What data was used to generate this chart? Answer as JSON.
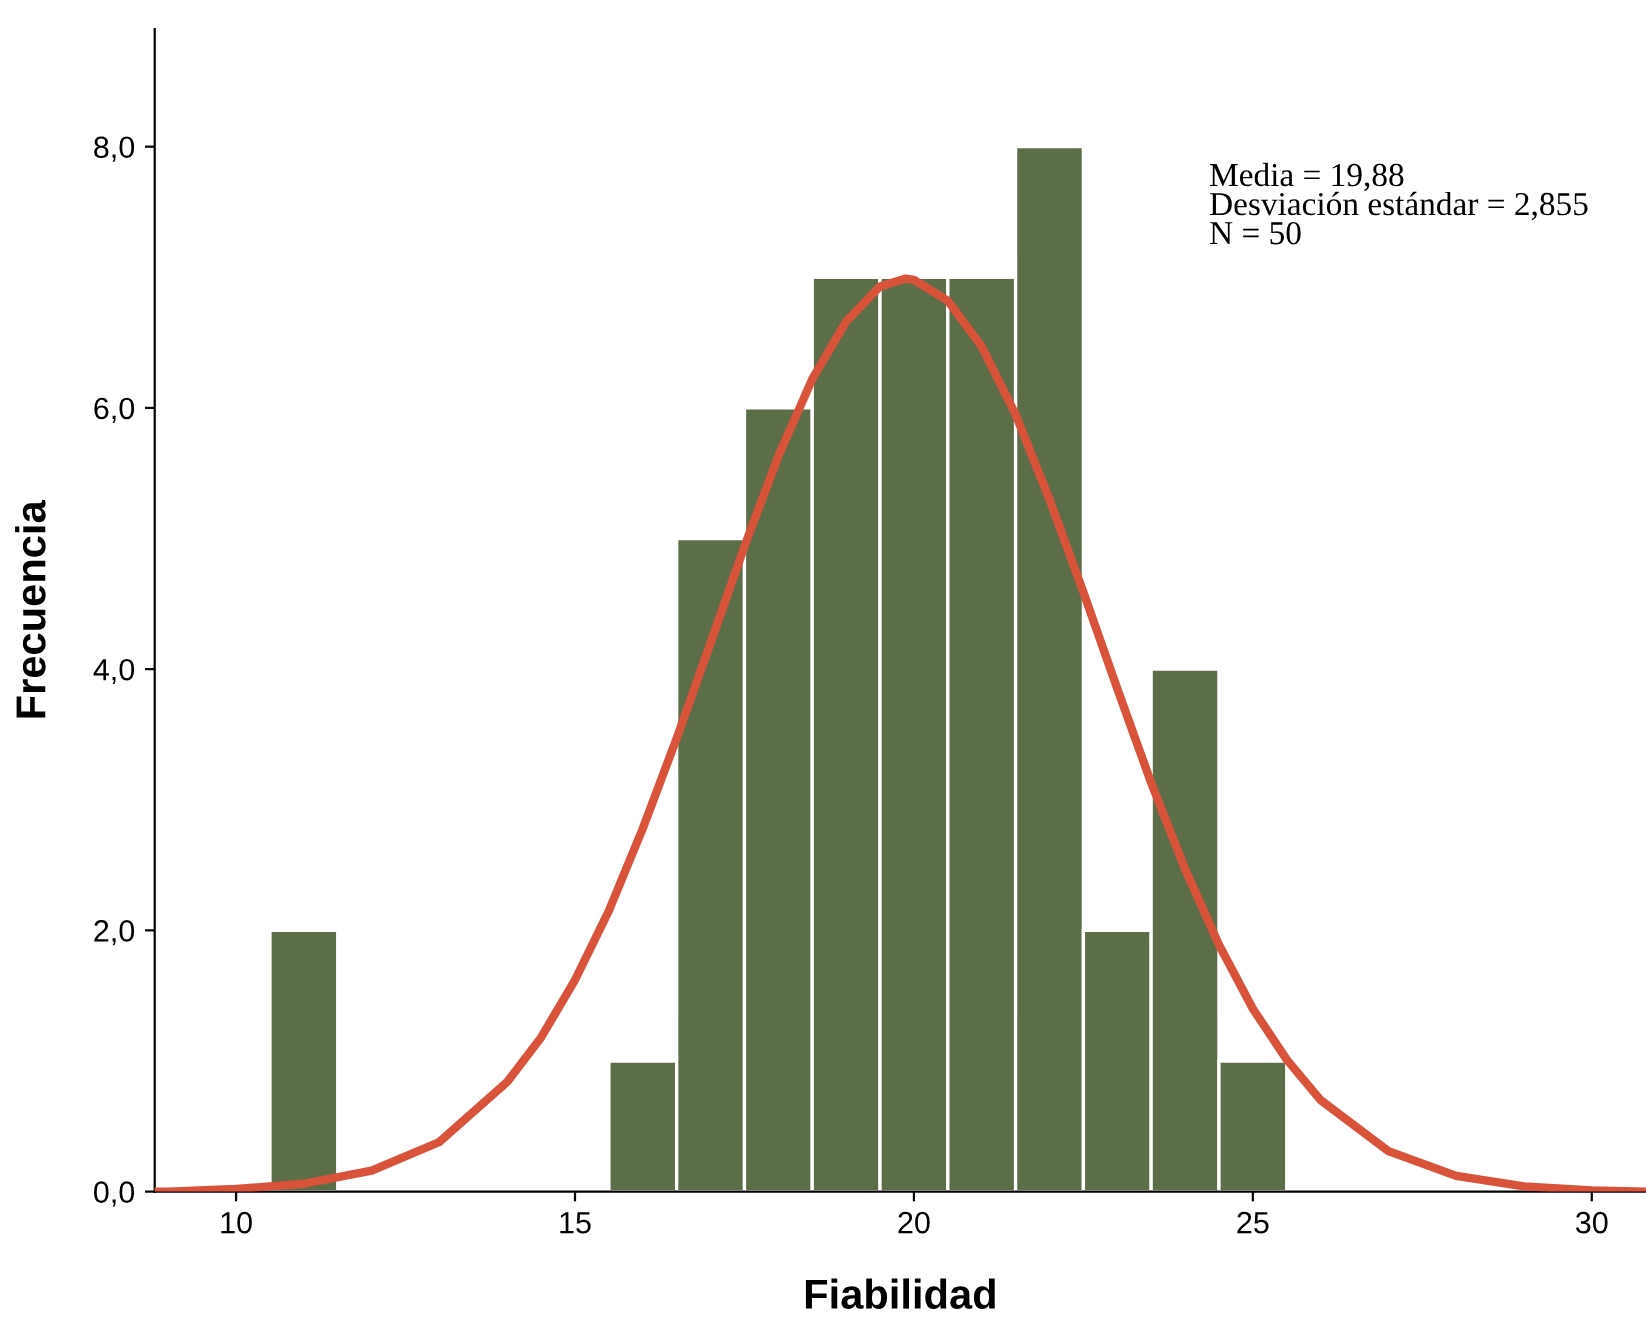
{
  "chart_data": {
    "type": "histogram",
    "xlabel": "Fiabilidad",
    "ylabel": "Frecuencia",
    "bins": [
      10.5,
      11.5,
      12.5,
      13.5,
      14.5,
      15.5,
      16.5,
      17.5,
      18.5,
      19.5,
      20.5,
      21.5,
      22.5,
      23.5,
      24.5,
      25.5
    ],
    "values": [
      2,
      0,
      0,
      0,
      0,
      1,
      5,
      6,
      7,
      7,
      7,
      8,
      2,
      4,
      1
    ],
    "color": "#5b6e48",
    "series": [
      {
        "type": "line",
        "color": "#d9533a",
        "x": [
          8.8,
          9,
          10,
          11,
          12,
          13,
          14,
          14.5,
          15,
          15.5,
          16,
          16.5,
          17,
          17.5,
          18,
          18.5,
          19,
          19.5,
          19.88,
          20,
          20.5,
          21,
          21.5,
          22,
          22.5,
          23,
          23.5,
          24,
          24.5,
          25,
          25.5,
          26,
          27,
          28,
          29,
          30,
          30.8
        ],
        "values": [
          0.0,
          0.0,
          0.02,
          0.06,
          0.16,
          0.38,
          0.84,
          1.18,
          1.62,
          2.15,
          2.78,
          3.47,
          4.2,
          4.94,
          5.63,
          6.22,
          6.66,
          6.93,
          6.99,
          6.98,
          6.82,
          6.47,
          5.95,
          5.3,
          4.59,
          3.85,
          3.13,
          2.47,
          1.89,
          1.4,
          1.01,
          0.7,
          0.31,
          0.12,
          0.04,
          0.01,
          0.0
        ]
      }
    ],
    "xlim": [
      8.8,
      30.8
    ],
    "ylim": [
      0,
      8.9
    ],
    "xticks": [
      10,
      15,
      20,
      25,
      30
    ],
    "yticks": [
      {
        "value": 0,
        "label": "0,0"
      },
      {
        "value": 2,
        "label": "2,0"
      },
      {
        "value": 4,
        "label": "4,0"
      },
      {
        "value": 6,
        "label": "6,0"
      },
      {
        "value": 8,
        "label": "8,0"
      }
    ],
    "grid": false,
    "legend": false,
    "annotations": [
      "Media = 19,88\nDesviación estándar = 2,855\nN = 50"
    ]
  }
}
